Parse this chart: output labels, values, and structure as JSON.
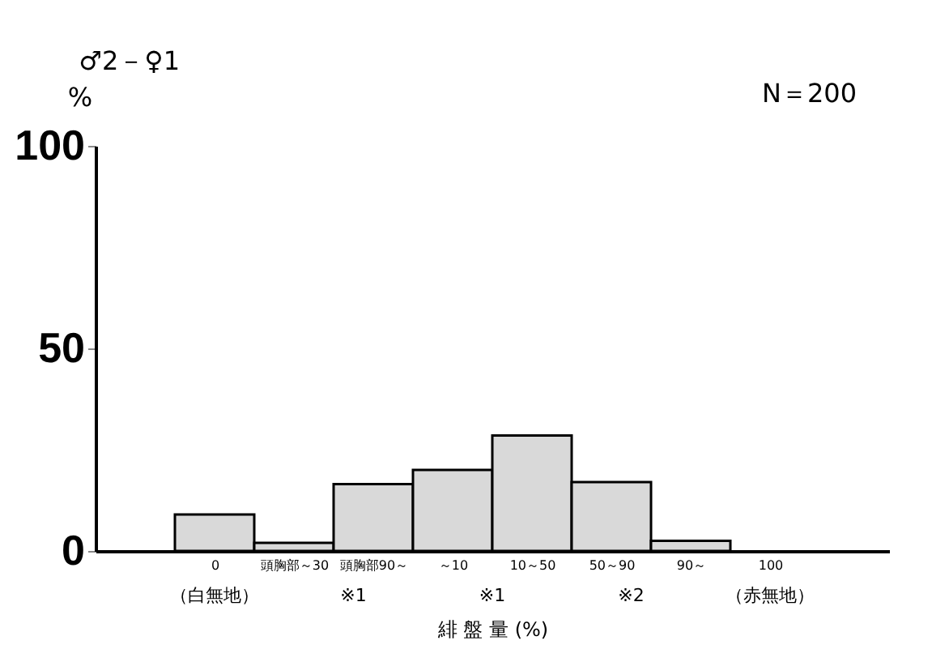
{
  "chart_data": {
    "type": "bar",
    "title": "♂2－♀1",
    "ylabel": "%",
    "xlabel": "緋 盤 量 (%)",
    "categories": [
      "0",
      "頭胸部～30",
      "頭胸部90～",
      "～10",
      "10～50",
      "50～90",
      "90～",
      "100"
    ],
    "values": [
      9,
      2,
      16.5,
      20,
      28.5,
      17,
      2.5,
      0
    ],
    "color": "#d9d9d9",
    "ylim": [
      0,
      100
    ],
    "yticks": [
      0,
      50,
      100
    ],
    "grid": false,
    "annotations": [
      "N＝200",
      "（白無地）",
      "※1",
      "※1",
      "※2",
      "（赤無地）"
    ]
  }
}
